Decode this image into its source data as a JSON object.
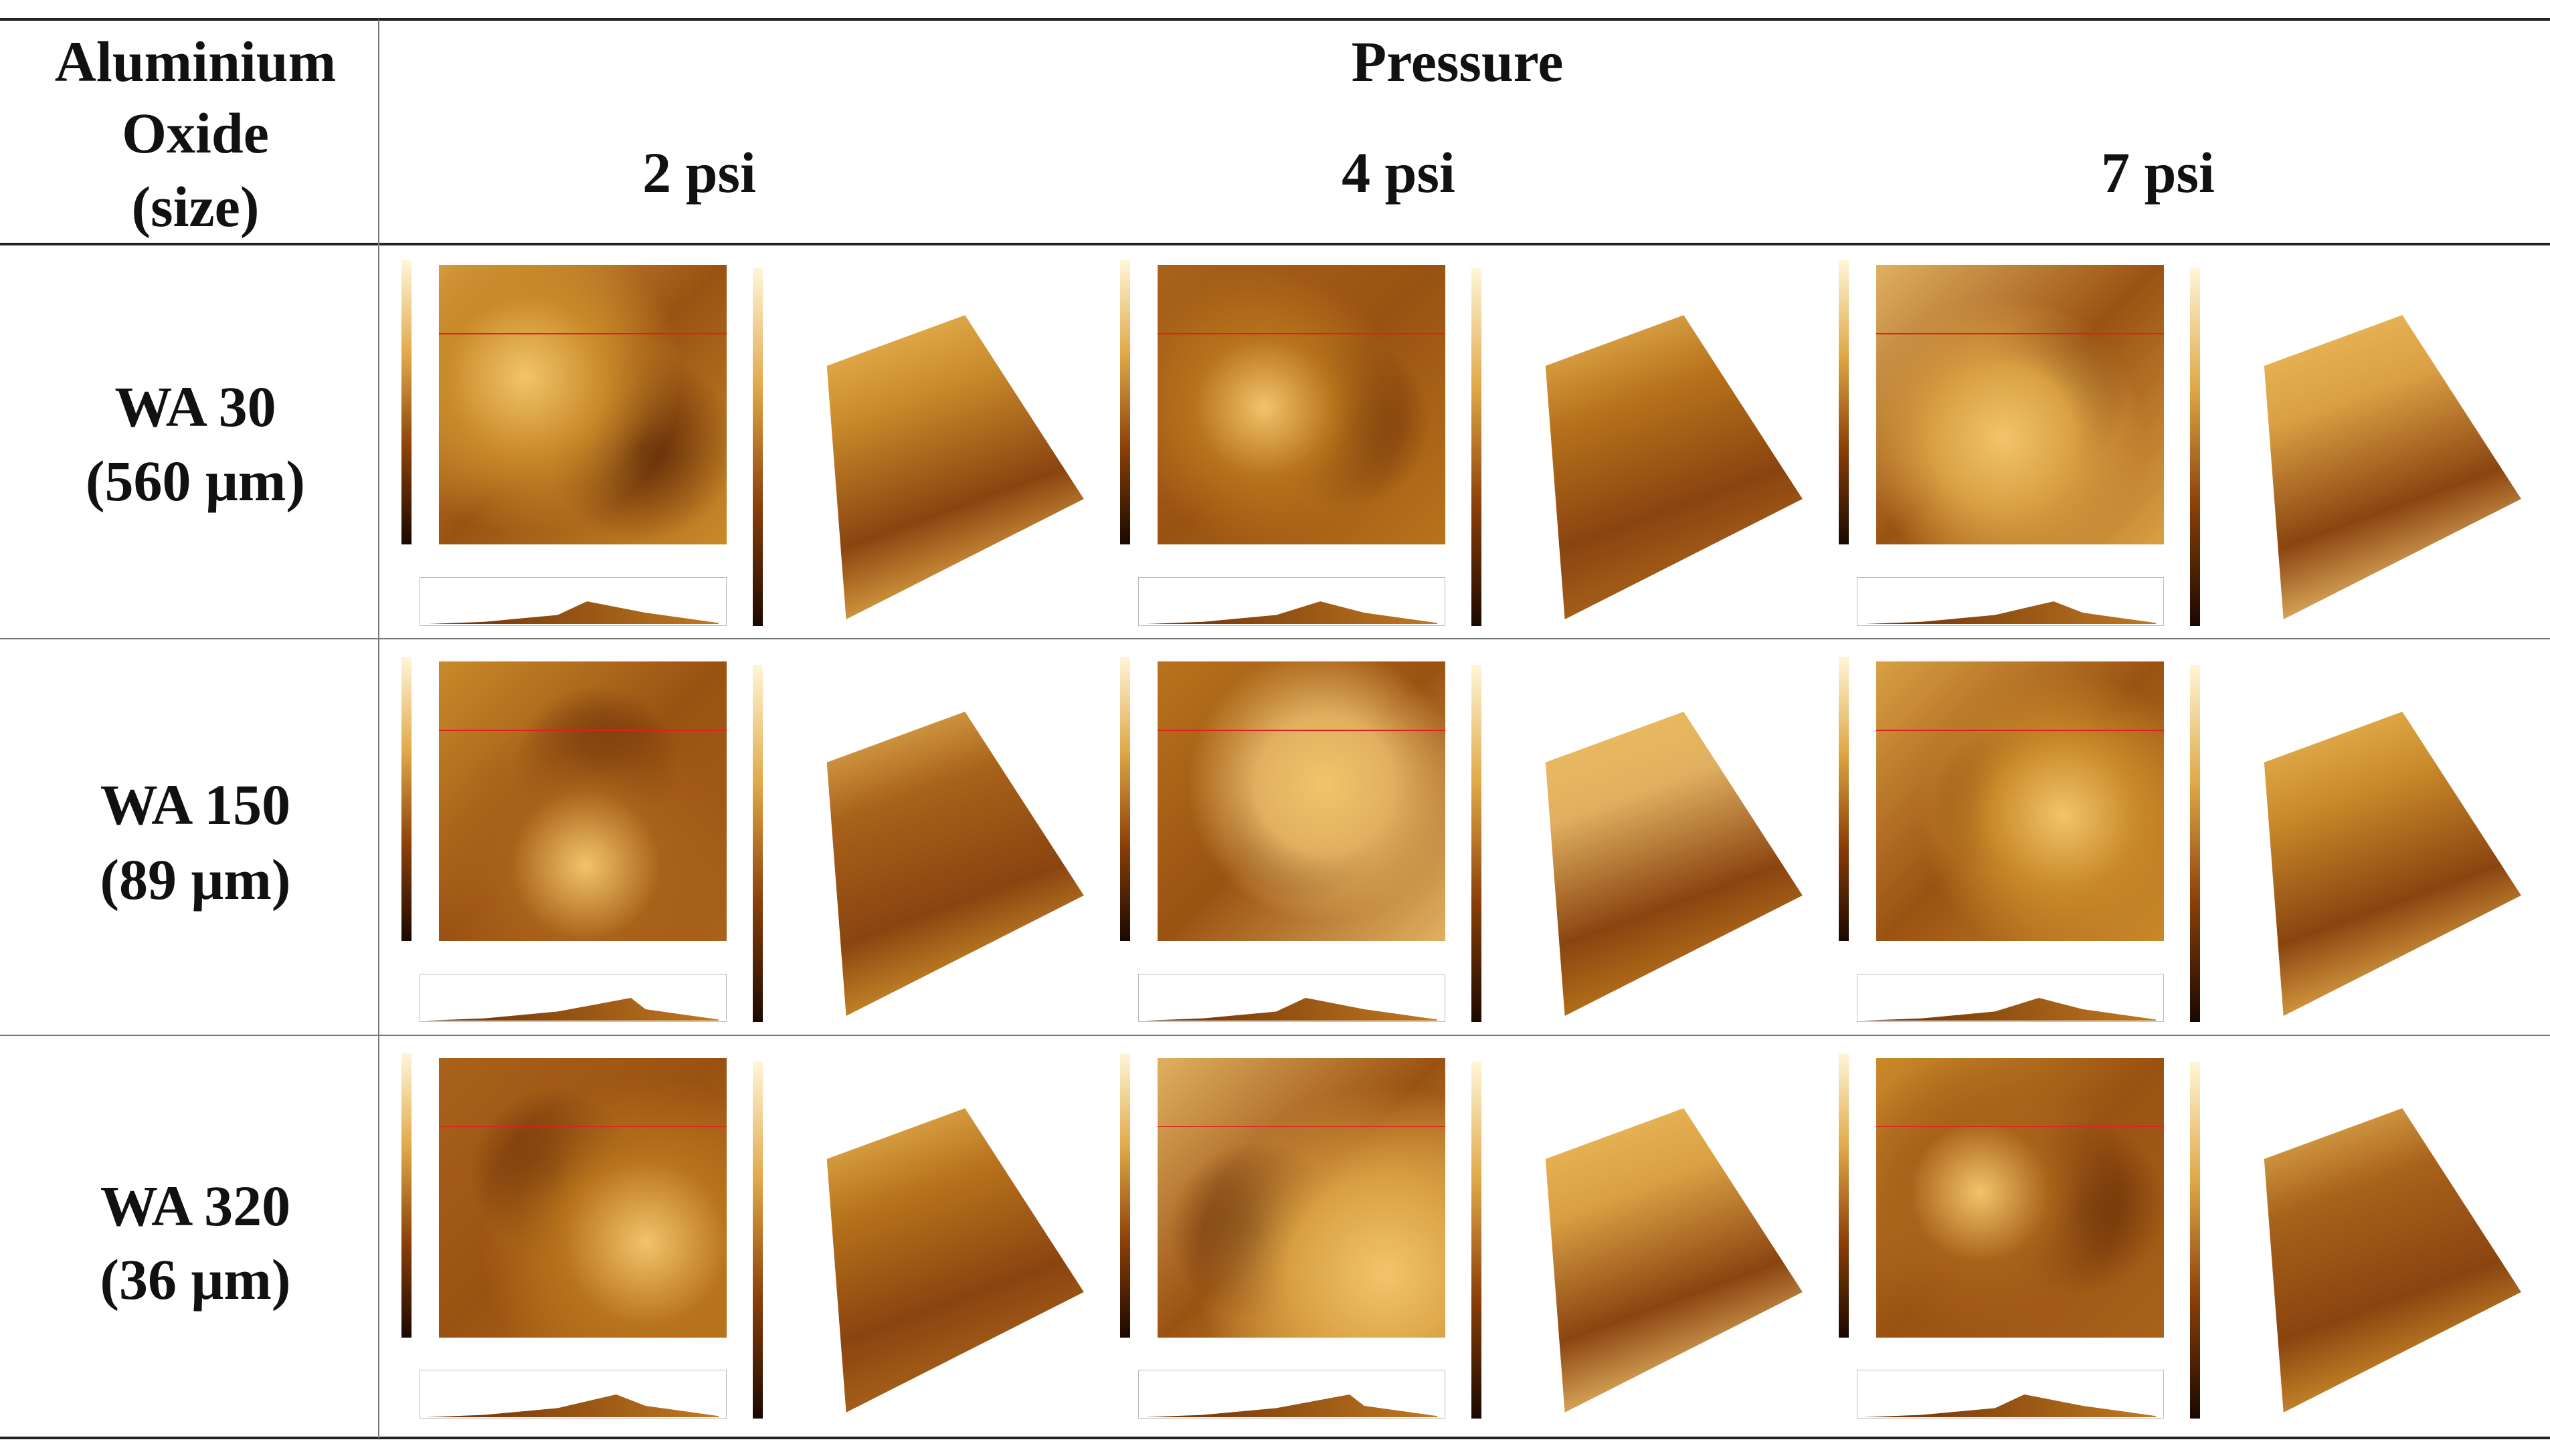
{
  "header": {
    "material_lines": [
      "Aluminium",
      "Oxide",
      "(size)"
    ],
    "group": "Pressure",
    "pressures": [
      "2 psi",
      "4 psi",
      "7 psi"
    ]
  },
  "rows": [
    {
      "name": "WA 30",
      "size": "(560 μm)"
    },
    {
      "name": "WA 150",
      "size": "(89 μm)"
    },
    {
      "name": "WA 320",
      "size": "(36 μm)"
    }
  ]
}
